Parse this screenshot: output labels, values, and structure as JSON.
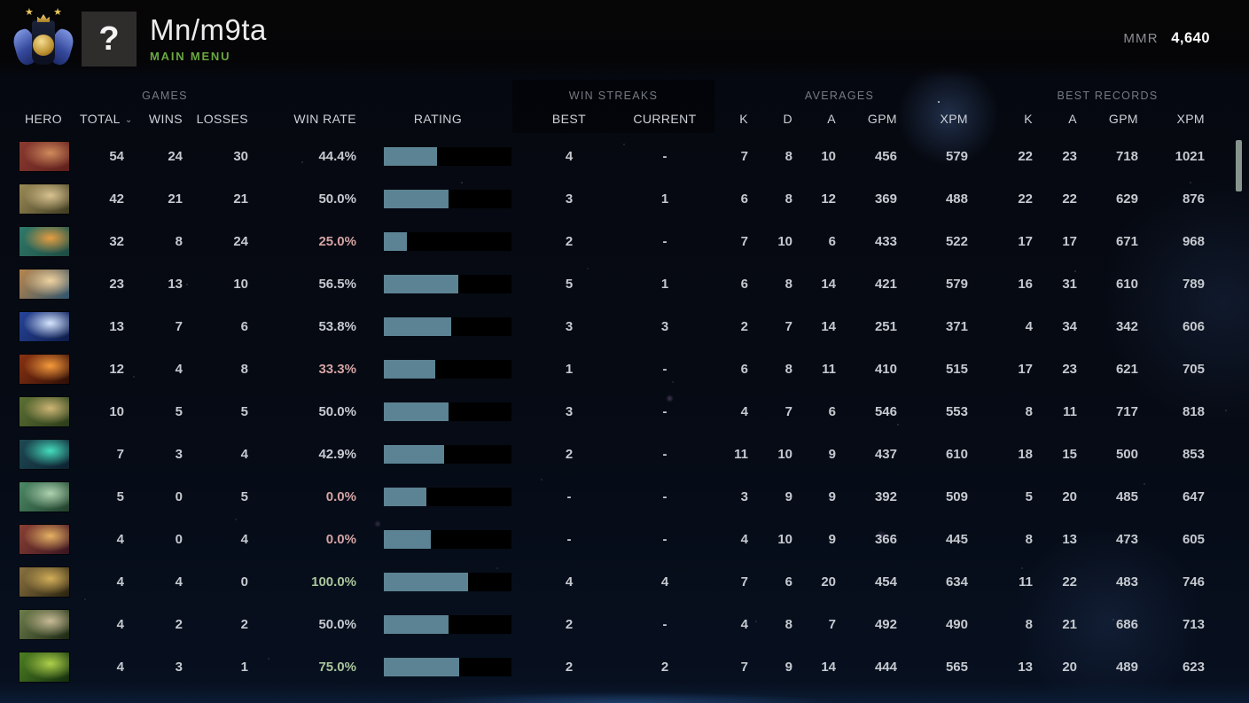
{
  "header": {
    "player_name": "Mn/m9ta",
    "nav_label": "MAIN MENU",
    "avatar_glyph": "?",
    "mmr_label": "MMR",
    "mmr_value": "4,640",
    "rank_medal_icon": "immortal-rank-medal",
    "medal_stars": "★"
  },
  "table": {
    "groups": [
      "GAMES",
      "WIN STREAKS",
      "AVERAGES",
      "BEST RECORDS"
    ],
    "columns": [
      "HERO",
      "TOTAL",
      "WINS",
      "LOSSES",
      "WIN RATE",
      "RATING",
      "BEST",
      "CURRENT",
      "K",
      "D",
      "A",
      "GPM",
      "XPM",
      "K",
      "A",
      "GPM",
      "XPM"
    ],
    "sort_caret": "⌄",
    "sorted_by": "TOTAL",
    "rows": [
      {
        "hero": "axe",
        "portrait": [
          "#5e1f1c",
          "#8a3a30",
          "#cf8a5c"
        ],
        "total": "54",
        "wins": "24",
        "losses": "30",
        "win_rate": "44.4%",
        "tone": "neutral",
        "rating_pct": 42,
        "streak_best": "4",
        "streak_current": "-",
        "avg_k": "7",
        "avg_d": "8",
        "avg_a": "10",
        "avg_gpm": "456",
        "avg_xpm": "579",
        "best_k": "22",
        "best_a": "23",
        "best_gpm": "718",
        "best_xpm": "1021"
      },
      {
        "hero": "pudge",
        "portrait": [
          "#3f3c22",
          "#9a8a56",
          "#d8c290"
        ],
        "total": "42",
        "wins": "21",
        "losses": "21",
        "win_rate": "50.0%",
        "tone": "neutral",
        "rating_pct": 51,
        "streak_best": "3",
        "streak_current": "1",
        "avg_k": "6",
        "avg_d": "8",
        "avg_a": "12",
        "avg_gpm": "369",
        "avg_xpm": "488",
        "best_k": "22",
        "best_a": "22",
        "best_gpm": "629",
        "best_xpm": "876"
      },
      {
        "hero": "bristleback",
        "portrait": [
          "#1d4a42",
          "#2f7a6a",
          "#e69d42"
        ],
        "total": "32",
        "wins": "8",
        "losses": "24",
        "win_rate": "25.0%",
        "tone": "low",
        "rating_pct": 18,
        "streak_best": "2",
        "streak_current": "-",
        "avg_k": "7",
        "avg_d": "10",
        "avg_a": "6",
        "avg_gpm": "433",
        "avg_xpm": "522",
        "best_k": "17",
        "best_a": "17",
        "best_gpm": "671",
        "best_xpm": "968"
      },
      {
        "hero": "gyrocopter",
        "portrait": [
          "#2f546e",
          "#b8864c",
          "#efd2a0"
        ],
        "total": "23",
        "wins": "13",
        "losses": "10",
        "win_rate": "56.5%",
        "tone": "neutral",
        "rating_pct": 58,
        "streak_best": "5",
        "streak_current": "1",
        "avg_k": "6",
        "avg_d": "8",
        "avg_a": "14",
        "avg_gpm": "421",
        "avg_xpm": "579",
        "best_k": "16",
        "best_a": "31",
        "best_gpm": "610",
        "best_xpm": "789"
      },
      {
        "hero": "io",
        "portrait": [
          "#0d1c48",
          "#27449a",
          "#d6e6ff"
        ],
        "total": "13",
        "wins": "7",
        "losses": "6",
        "win_rate": "53.8%",
        "tone": "neutral",
        "rating_pct": 53,
        "streak_best": "3",
        "streak_current": "3",
        "avg_k": "2",
        "avg_d": "7",
        "avg_a": "14",
        "avg_gpm": "251",
        "avg_xpm": "371",
        "best_k": "4",
        "best_a": "34",
        "best_gpm": "342",
        "best_xpm": "606"
      },
      {
        "hero": "clockwerk",
        "portrait": [
          "#2e0f06",
          "#8a3212",
          "#f59a3c"
        ],
        "total": "12",
        "wins": "4",
        "losses": "8",
        "win_rate": "33.3%",
        "tone": "low",
        "rating_pct": 40,
        "streak_best": "1",
        "streak_current": "-",
        "avg_k": "6",
        "avg_d": "8",
        "avg_a": "11",
        "avg_gpm": "410",
        "avg_xpm": "515",
        "best_k": "17",
        "best_a": "23",
        "best_gpm": "621",
        "best_xpm": "705"
      },
      {
        "hero": "natures-prophet",
        "portrait": [
          "#2b3c1a",
          "#5c7034",
          "#cdb575"
        ],
        "total": "10",
        "wins": "5",
        "losses": "5",
        "win_rate": "50.0%",
        "tone": "neutral",
        "rating_pct": 51,
        "streak_best": "3",
        "streak_current": "-",
        "avg_k": "4",
        "avg_d": "7",
        "avg_a": "6",
        "avg_gpm": "546",
        "avg_xpm": "553",
        "best_k": "8",
        "best_a": "11",
        "best_gpm": "717",
        "best_xpm": "818"
      },
      {
        "hero": "teal-dragon-hero",
        "portrait": [
          "#0d2130",
          "#1e4a54",
          "#45dcbc"
        ],
        "total": "7",
        "wins": "3",
        "losses": "4",
        "win_rate": "42.9%",
        "tone": "neutral",
        "rating_pct": 47,
        "streak_best": "2",
        "streak_current": "-",
        "avg_k": "11",
        "avg_d": "10",
        "avg_a": "9",
        "avg_gpm": "437",
        "avg_xpm": "610",
        "best_k": "18",
        "best_a": "15",
        "best_gpm": "500",
        "best_xpm": "853"
      },
      {
        "hero": "tidehunter",
        "portrait": [
          "#223f2b",
          "#4c8a66",
          "#aed2b0"
        ],
        "total": "5",
        "wins": "0",
        "losses": "5",
        "win_rate": "0.0%",
        "tone": "low",
        "rating_pct": 33,
        "streak_best": "-",
        "streak_current": "-",
        "avg_k": "3",
        "avg_d": "9",
        "avg_a": "9",
        "avg_gpm": "392",
        "avg_xpm": "509",
        "best_k": "5",
        "best_a": "20",
        "best_gpm": "485",
        "best_xpm": "647"
      },
      {
        "hero": "legion-commander",
        "portrait": [
          "#3a1520",
          "#8a4034",
          "#e6b264"
        ],
        "total": "4",
        "wins": "0",
        "losses": "4",
        "win_rate": "0.0%",
        "tone": "low",
        "rating_pct": 37,
        "streak_best": "-",
        "streak_current": "-",
        "avg_k": "4",
        "avg_d": "10",
        "avg_a": "9",
        "avg_gpm": "366",
        "avg_xpm": "445",
        "best_k": "8",
        "best_a": "13",
        "best_gpm": "473",
        "best_xpm": "605"
      },
      {
        "hero": "sand-king",
        "portrait": [
          "#2a2310",
          "#8a7240",
          "#d2ae58"
        ],
        "total": "4",
        "wins": "4",
        "losses": "0",
        "win_rate": "100.0%",
        "tone": "high",
        "rating_pct": 66,
        "streak_best": "4",
        "streak_current": "4",
        "avg_k": "7",
        "avg_d": "6",
        "avg_a": "20",
        "avg_gpm": "454",
        "avg_xpm": "634",
        "best_k": "11",
        "best_a": "22",
        "best_gpm": "483",
        "best_xpm": "746"
      },
      {
        "hero": "undying",
        "portrait": [
          "#1b2713",
          "#6e7e4c",
          "#c8ba96"
        ],
        "total": "4",
        "wins": "2",
        "losses": "2",
        "win_rate": "50.0%",
        "tone": "neutral",
        "rating_pct": 51,
        "streak_best": "2",
        "streak_current": "-",
        "avg_k": "4",
        "avg_d": "8",
        "avg_a": "7",
        "avg_gpm": "492",
        "avg_xpm": "490",
        "best_k": "8",
        "best_a": "21",
        "best_gpm": "686",
        "best_xpm": "713"
      },
      {
        "hero": "viper",
        "portrait": [
          "#152e0d",
          "#4c7e22",
          "#aed04a"
        ],
        "total": "4",
        "wins": "3",
        "losses": "1",
        "win_rate": "75.0%",
        "tone": "high",
        "rating_pct": 59,
        "streak_best": "2",
        "streak_current": "2",
        "avg_k": "7",
        "avg_d": "9",
        "avg_a": "14",
        "avg_gpm": "444",
        "avg_xpm": "565",
        "best_k": "13",
        "best_a": "20",
        "best_gpm": "489",
        "best_xpm": "623"
      }
    ]
  },
  "colors": {
    "accent_green": "#69a842",
    "bar_fill": "#5c8393",
    "bar_track": "#000000",
    "win_rate_low": "#d5a4a4",
    "win_rate_high": "#a9c69b",
    "text": "#c6cad0",
    "scroll_thumb": "#87958e"
  }
}
